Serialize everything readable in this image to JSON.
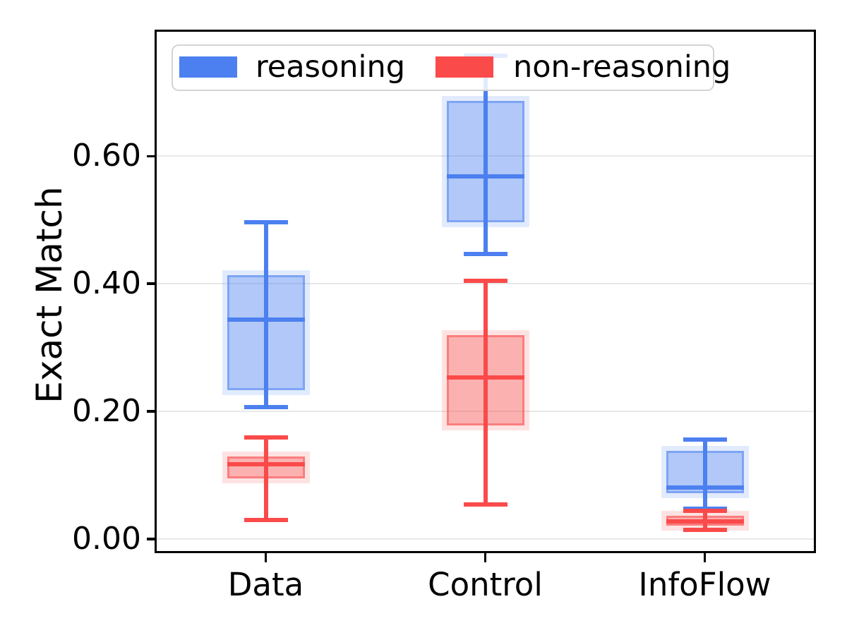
{
  "chart_data": {
    "type": "boxplot",
    "title": "",
    "xlabel": "",
    "ylabel": "Exact Match",
    "categories": [
      "Data",
      "Control",
      "InfoFlow"
    ],
    "y_ticks": [
      0.0,
      0.2,
      0.4,
      0.6
    ],
    "y_tick_labels": [
      "0.00",
      "0.20",
      "0.40",
      "0.60"
    ],
    "ylim": [
      -0.021,
      0.796
    ],
    "grid": "horizontal",
    "grid_color": "#e8e8e8",
    "legend_position": "upper left",
    "series": [
      {
        "name": "reasoning",
        "color": "#4c80f0",
        "boxes": [
          {
            "category": "Data",
            "whisker_low": 0.207,
            "q1": 0.233,
            "median": 0.344,
            "q3": 0.413,
            "whisker_high": 0.496
          },
          {
            "category": "Control",
            "whisker_low": 0.447,
            "q1": 0.496,
            "median": 0.568,
            "q3": 0.687,
            "whisker_high": 0.757
          },
          {
            "category": "InfoFlow",
            "whisker_low": 0.047,
            "q1": 0.072,
            "median": 0.081,
            "q3": 0.138,
            "whisker_high": 0.156
          }
        ]
      },
      {
        "name": "non-reasoning",
        "color": "#fa4a4a",
        "boxes": [
          {
            "category": "Data",
            "whisker_low": 0.03,
            "q1": 0.095,
            "median": 0.117,
            "q3": 0.129,
            "whisker_high": 0.159
          },
          {
            "category": "Control",
            "whisker_low": 0.054,
            "q1": 0.178,
            "median": 0.253,
            "q3": 0.32,
            "whisker_high": 0.405
          },
          {
            "category": "InfoFlow",
            "whisker_low": 0.014,
            "q1": 0.021,
            "median": 0.028,
            "q3": 0.036,
            "whisker_high": 0.044
          }
        ]
      }
    ]
  },
  "legend": {
    "items": [
      {
        "label": "reasoning",
        "color": "#4c80f0"
      },
      {
        "label": "non-reasoning",
        "color": "#fa4a4a"
      }
    ]
  }
}
